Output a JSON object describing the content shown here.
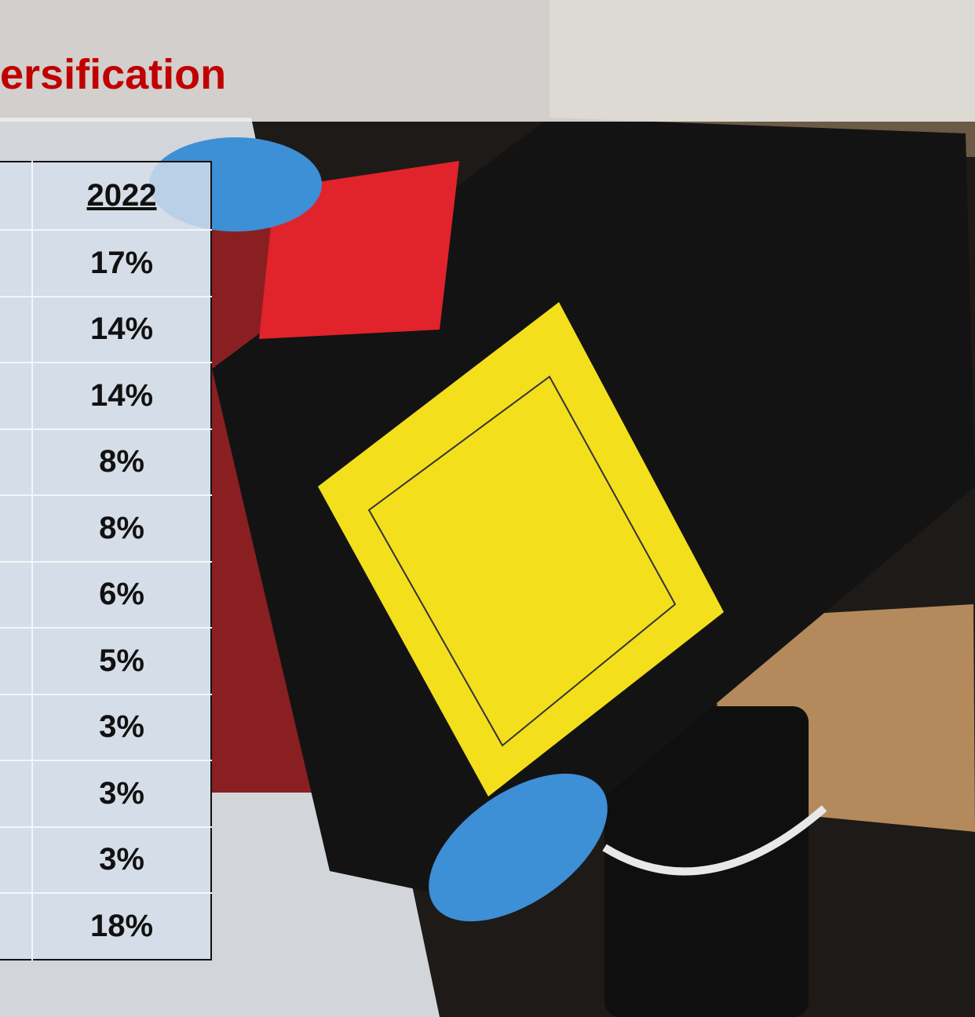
{
  "header": {
    "title": "ersification"
  },
  "table": {
    "header": "2022",
    "rows": [
      "17%",
      "14%",
      "14%",
      "8%",
      "8%",
      "6%",
      "5%",
      "3%",
      "3%",
      "3%",
      "18%"
    ]
  }
}
